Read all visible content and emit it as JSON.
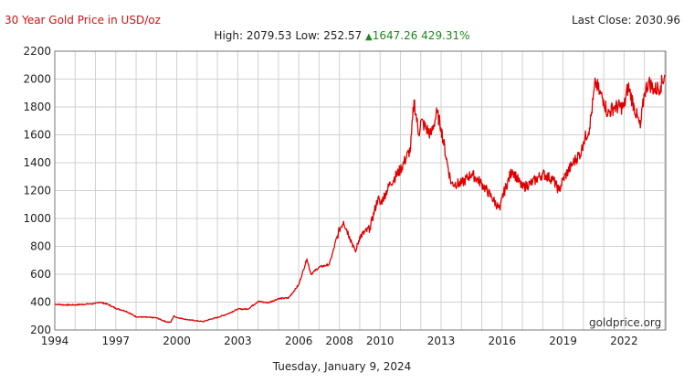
{
  "header": {
    "title": "30 Year Gold Price in USD/oz",
    "last_close_label": "Last Close:",
    "last_close_value": "2030.96",
    "high_label": "High:",
    "high_value": "2079.53",
    "low_label": "Low:",
    "low_value": "252.57",
    "change_value": "1647.26",
    "change_percent": "429.31%",
    "change_direction": "up-arrow-icon"
  },
  "date_label": "Tuesday, January 9, 2024",
  "watermark": "goldprice.org",
  "colors": {
    "line": "#e00000",
    "title": "#d01010",
    "up": "#1a8a1a",
    "grid": "#d0d0d0"
  },
  "chart_data": {
    "type": "line",
    "xlabel": "",
    "ylabel": "",
    "xlim": [
      1994,
      2024.05
    ],
    "ylim": [
      200,
      2200
    ],
    "x_ticks": [
      "1994",
      "1997",
      "2000",
      "2003",
      "2006",
      "2008",
      "2010",
      "2013",
      "2016",
      "2019",
      "2022"
    ],
    "y_ticks": [
      "200",
      "400",
      "600",
      "800",
      "1000",
      "1200",
      "1400",
      "1600",
      "1800",
      "2000",
      "2200"
    ],
    "grid": true,
    "series": [
      {
        "name": "",
        "x": [
          1994.0,
          1994.5,
          1995.0,
          1995.5,
          1996.0,
          1996.2,
          1996.6,
          1997.0,
          1997.5,
          1998.0,
          1998.5,
          1999.0,
          1999.5,
          1999.7,
          1999.85,
          2000.0,
          2000.5,
          2001.0,
          2001.3,
          2001.6,
          2002.0,
          2002.5,
          2003.0,
          2003.5,
          2004.0,
          2004.5,
          2005.0,
          2005.5,
          2006.0,
          2006.4,
          2006.6,
          2007.0,
          2007.5,
          2008.0,
          2008.2,
          2008.5,
          2008.8,
          2009.0,
          2009.5,
          2009.9,
          2010.0,
          2010.5,
          2011.0,
          2011.5,
          2011.67,
          2011.9,
          2012.0,
          2012.5,
          2012.8,
          2013.0,
          2013.3,
          2013.5,
          2014.0,
          2014.5,
          2015.0,
          2015.5,
          2015.9,
          2016.0,
          2016.5,
          2017.0,
          2017.5,
          2018.0,
          2018.5,
          2018.8,
          2019.0,
          2019.5,
          2019.9,
          2020.0,
          2020.3,
          2020.6,
          2020.8,
          2021.0,
          2021.2,
          2021.5,
          2022.0,
          2022.2,
          2022.5,
          2022.8,
          2023.0,
          2023.2,
          2023.5,
          2023.8,
          2024.0
        ],
        "values": [
          385,
          380,
          380,
          385,
          390,
          400,
          385,
          355,
          335,
          295,
          292,
          287,
          258,
          255,
          300,
          290,
          275,
          265,
          260,
          275,
          290,
          315,
          350,
          350,
          405,
          395,
          425,
          430,
          525,
          710,
          600,
          650,
          670,
          920,
          980,
          870,
          760,
          870,
          930,
          1150,
          1100,
          1250,
          1350,
          1500,
          1850,
          1600,
          1700,
          1600,
          1760,
          1650,
          1400,
          1250,
          1250,
          1320,
          1250,
          1150,
          1060,
          1150,
          1350,
          1220,
          1260,
          1320,
          1280,
          1200,
          1280,
          1400,
          1480,
          1550,
          1650,
          1980,
          1900,
          1850,
          1750,
          1800,
          1800,
          1950,
          1800,
          1650,
          1900,
          1980,
          1920,
          1950,
          2030
        ]
      }
    ]
  }
}
